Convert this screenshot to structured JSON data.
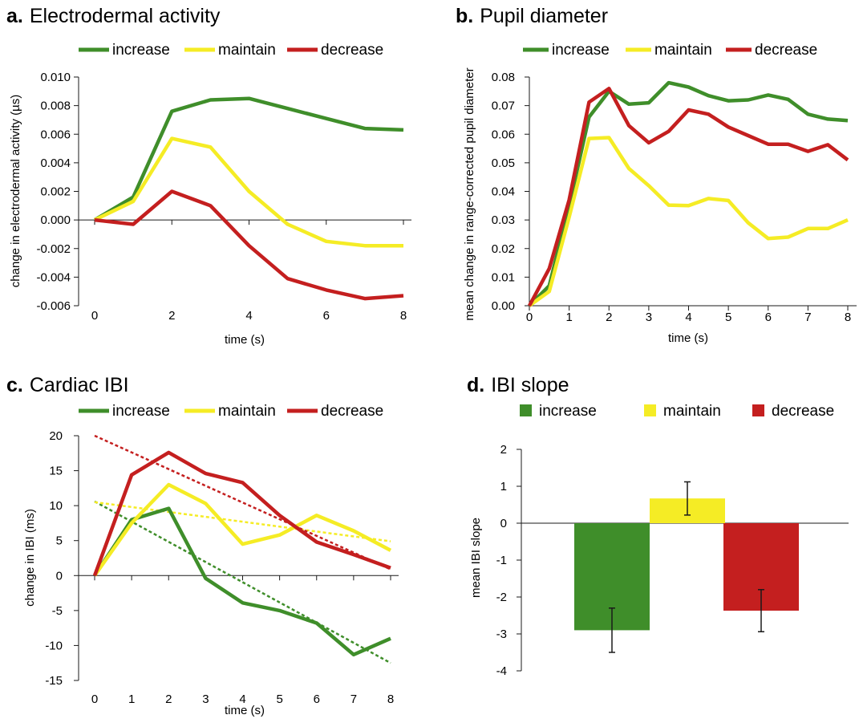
{
  "colors": {
    "increase": "#3f8e2a",
    "maintain": "#f5ec25",
    "decrease": "#c41f1f",
    "axis": "#1a1a1a"
  },
  "chart_data": [
    {
      "panel_letter": "a.",
      "title": "Electrodermal activity",
      "type": "line",
      "xlabel": "time (s)",
      "ylabel": "change in electrodermal activity (µs)",
      "xlim": [
        0,
        8
      ],
      "ylim": [
        -0.006,
        0.01
      ],
      "xticks": [
        "0",
        "2",
        "4",
        "6",
        "8"
      ],
      "yticks": [
        "-0.006",
        "-0.004",
        "-0.002",
        "0.000",
        "0.002",
        "0.004",
        "0.006",
        "0.008",
        "0.010"
      ],
      "legend_position": "top",
      "x": [
        0,
        1,
        2,
        3,
        4,
        5,
        6,
        7,
        8
      ],
      "series": [
        {
          "name": "increase",
          "values": [
            0.0,
            0.0016,
            0.0076,
            0.0084,
            0.0085,
            0.0078,
            0.0071,
            0.0064,
            0.0063
          ]
        },
        {
          "name": "maintain",
          "values": [
            0.0,
            0.0013,
            0.0057,
            0.0051,
            0.002,
            -0.0003,
            -0.0015,
            -0.0018,
            -0.0018
          ]
        },
        {
          "name": "decrease",
          "values": [
            0.0,
            -0.0003,
            0.002,
            0.001,
            -0.0018,
            -0.0041,
            -0.0049,
            -0.0055,
            -0.0053
          ]
        }
      ]
    },
    {
      "panel_letter": "b.",
      "title": "Pupil diameter",
      "type": "line",
      "xlabel": "time (s)",
      "ylabel": "mean change in range-corrected pupil diameter",
      "xlim": [
        0,
        8
      ],
      "ylim": [
        0,
        0.08
      ],
      "xticks": [
        "0",
        "1",
        "2",
        "3",
        "4",
        "5",
        "6",
        "7",
        "8"
      ],
      "yticks": [
        "0.00",
        "0.01",
        "0.02",
        "0.03",
        "0.04",
        "0.05",
        "0.06",
        "0.07",
        "0.08"
      ],
      "legend_position": "top",
      "x": [
        0,
        0.5,
        1,
        1.5,
        2,
        2.5,
        3,
        3.5,
        4,
        4.5,
        5,
        5.5,
        6,
        6.5,
        7,
        7.5,
        8
      ],
      "series": [
        {
          "name": "increase",
          "values": [
            0.0,
            0.007,
            0.035,
            0.066,
            0.075,
            0.0705,
            0.071,
            0.078,
            0.0765,
            0.0735,
            0.0717,
            0.072,
            0.0737,
            0.0722,
            0.067,
            0.0653,
            0.0648
          ]
        },
        {
          "name": "maintain",
          "values": [
            0.0,
            0.005,
            0.031,
            0.0585,
            0.0588,
            0.048,
            0.042,
            0.0352,
            0.035,
            0.0375,
            0.0368,
            0.029,
            0.0235,
            0.024,
            0.027,
            0.027,
            0.03
          ]
        },
        {
          "name": "decrease",
          "values": [
            0.0,
            0.013,
            0.037,
            0.0712,
            0.076,
            0.063,
            0.057,
            0.061,
            0.0685,
            0.067,
            0.0625,
            0.0595,
            0.0565,
            0.0565,
            0.054,
            0.0563,
            0.051
          ]
        }
      ]
    },
    {
      "panel_letter": "c.",
      "title": "Cardiac IBI",
      "type": "line",
      "xlabel": "time (s)",
      "ylabel": "change in IBI (ms)",
      "xlim": [
        0,
        8
      ],
      "ylim": [
        -15,
        20
      ],
      "xticks": [
        "0",
        "1",
        "2",
        "3",
        "4",
        "5",
        "6",
        "7",
        "8"
      ],
      "yticks": [
        "-15",
        "-10",
        "-5",
        "0",
        "5",
        "10",
        "15",
        "20"
      ],
      "legend_position": "top",
      "x": [
        0,
        1,
        2,
        3,
        4,
        5,
        6,
        7,
        8
      ],
      "series": [
        {
          "name": "increase",
          "values": [
            0,
            8.0,
            9.6,
            -0.4,
            -3.9,
            -5.0,
            -6.8,
            -11.3,
            -9.0
          ]
        },
        {
          "name": "maintain",
          "values": [
            0,
            7.5,
            13.0,
            10.3,
            4.5,
            5.8,
            8.6,
            6.4,
            3.6
          ]
        },
        {
          "name": "decrease",
          "values": [
            0,
            14.4,
            17.6,
            14.6,
            13.3,
            8.6,
            4.8,
            3.0,
            1.1
          ]
        }
      ],
      "trend_lines": [
        {
          "series": "increase",
          "x": [
            0,
            8
          ],
          "y": [
            10.6,
            -12.5
          ]
        },
        {
          "series": "maintain",
          "x": [
            0,
            8
          ],
          "y": [
            10.5,
            4.9
          ]
        },
        {
          "series": "decrease",
          "x": [
            0,
            8
          ],
          "y": [
            20.0,
            0.9
          ]
        }
      ]
    },
    {
      "panel_letter": "d.",
      "title": "IBI slope",
      "type": "bar",
      "ylabel": "mean IBI slope",
      "ylim": [
        -4,
        2
      ],
      "yticks": [
        "-4",
        "-3",
        "-2",
        "-1",
        "0",
        "1",
        "2"
      ],
      "legend_position": "top",
      "categories": [
        "increase",
        "maintain",
        "decrease"
      ],
      "values": [
        -2.9,
        0.67,
        -2.37
      ],
      "errors": [
        0.6,
        0.45,
        0.57
      ]
    }
  ]
}
